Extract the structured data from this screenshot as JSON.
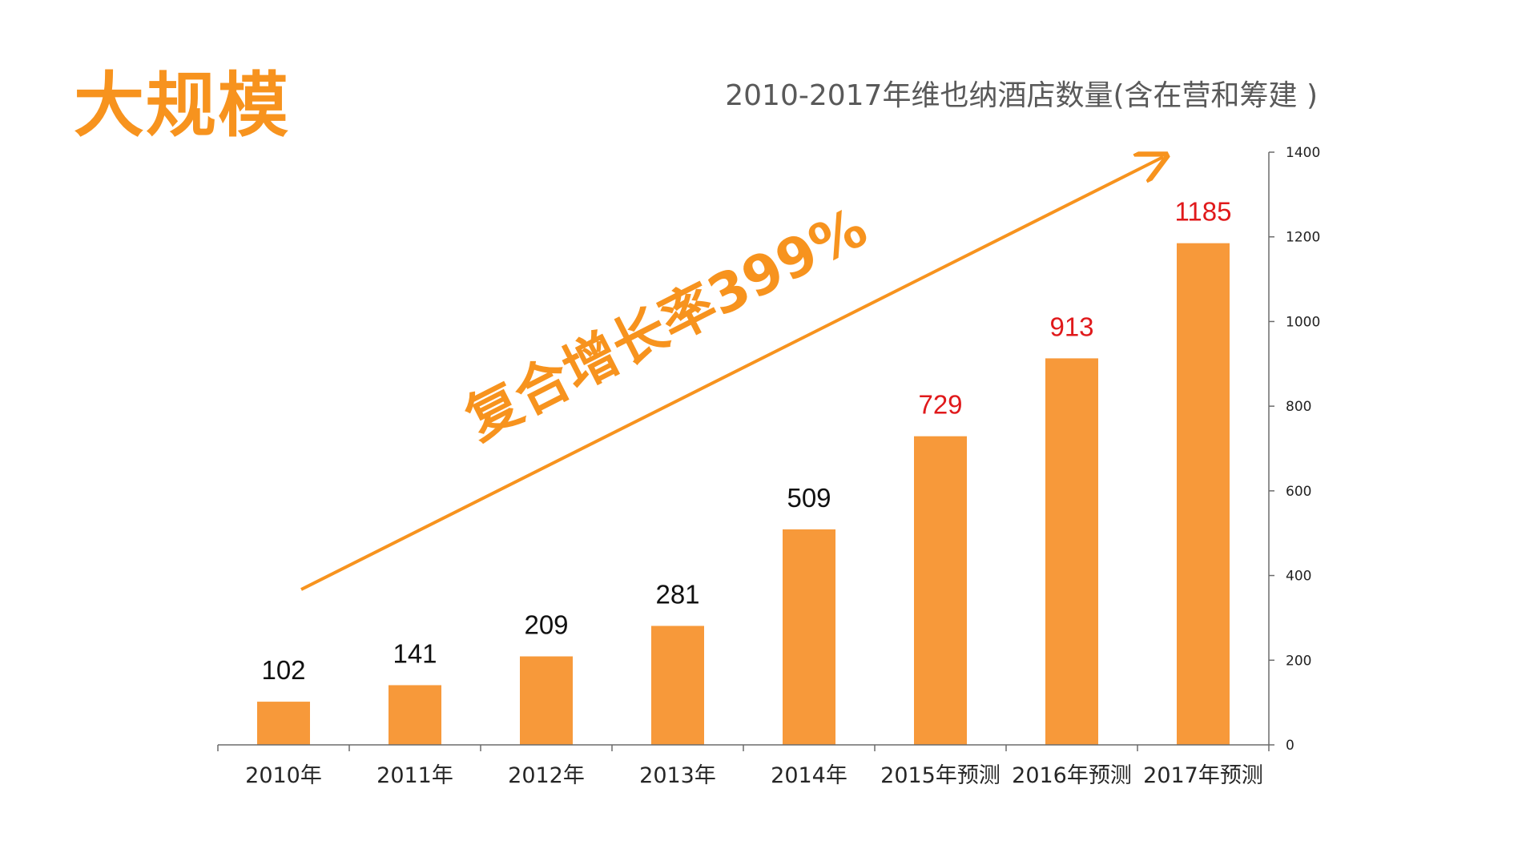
{
  "headline": "大规模",
  "colors": {
    "accent": "#f7931e",
    "bar": "#f7993a",
    "label_actual": "#111111",
    "label_forecast": "#e0191b",
    "axis": "#6b6b6b",
    "title": "#595959"
  },
  "chart_data": {
    "type": "bar",
    "title": "2010-2017年维也纳酒店数量(含在营和筹建 )",
    "xlabel": "",
    "ylabel": "",
    "categories": [
      "2010年",
      "2011年",
      "2012年",
      "2013年",
      "2014年",
      "2015年预测",
      "2016年预测",
      "2017年预测"
    ],
    "values": [
      102,
      141,
      209,
      281,
      509,
      729,
      913,
      1185
    ],
    "forecast_flags": [
      false,
      false,
      false,
      false,
      false,
      true,
      true,
      true
    ],
    "ylim": [
      0,
      1400
    ],
    "yticks": [
      0,
      200,
      400,
      600,
      800,
      1000,
      1200,
      1400
    ],
    "y_axis_side": "right",
    "grid": false,
    "legend": "none",
    "annotation": "复合增长率399%"
  }
}
